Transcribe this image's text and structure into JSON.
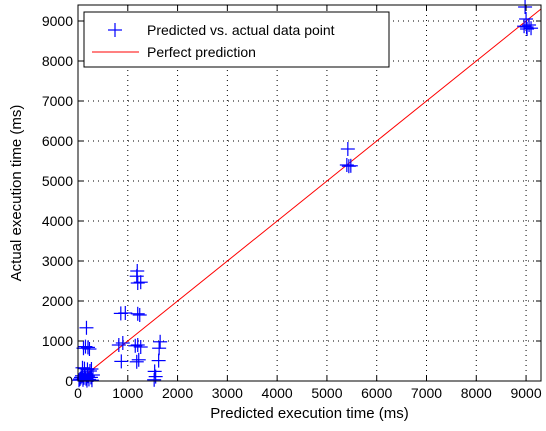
{
  "chart_data": {
    "type": "scatter",
    "title": "",
    "xlabel": "Predicted execution time (ms)",
    "ylabel": "Actual execution time (ms)",
    "xlim": [
      0,
      9300
    ],
    "ylim": [
      0,
      9400
    ],
    "xticks": [
      0,
      1000,
      2000,
      3000,
      4000,
      5000,
      6000,
      7000,
      8000,
      9000
    ],
    "yticks": [
      0,
      1000,
      2000,
      3000,
      4000,
      5000,
      6000,
      7000,
      8000,
      9000
    ],
    "grid": true,
    "legend_position": "top-left",
    "series": [
      {
        "name": "Predicted vs. actual data point",
        "marker": "+",
        "color": "#0000ff",
        "points": [
          [
            20,
            20
          ],
          [
            40,
            50
          ],
          [
            60,
            90
          ],
          [
            80,
            130
          ],
          [
            100,
            30
          ],
          [
            120,
            80
          ],
          [
            140,
            170
          ],
          [
            160,
            60
          ],
          [
            180,
            10
          ],
          [
            200,
            120
          ],
          [
            220,
            40
          ],
          [
            240,
            250
          ],
          [
            260,
            90
          ],
          [
            280,
            20
          ],
          [
            300,
            150
          ],
          [
            90,
            330
          ],
          [
            130,
            310
          ],
          [
            190,
            290
          ],
          [
            270,
            300
          ],
          [
            110,
            820
          ],
          [
            150,
            860
          ],
          [
            200,
            840
          ],
          [
            230,
            800
          ],
          [
            170,
            1330
          ],
          [
            820,
            900
          ],
          [
            870,
            490
          ],
          [
            900,
            950
          ],
          [
            860,
            1690
          ],
          [
            950,
            1700
          ],
          [
            1180,
            2620
          ],
          [
            1190,
            2750
          ],
          [
            1200,
            2450
          ],
          [
            1260,
            2470
          ],
          [
            1200,
            1680
          ],
          [
            1240,
            1650
          ],
          [
            1150,
            880
          ],
          [
            1200,
            900
          ],
          [
            1260,
            850
          ],
          [
            1180,
            480
          ],
          [
            1220,
            530
          ],
          [
            1530,
            30
          ],
          [
            1560,
            110
          ],
          [
            1540,
            240
          ],
          [
            1620,
            510
          ],
          [
            1650,
            980
          ],
          [
            1630,
            820
          ],
          [
            5420,
            5800
          ],
          [
            5400,
            5400
          ],
          [
            5440,
            5370
          ],
          [
            5480,
            5380
          ],
          [
            8980,
            9350
          ],
          [
            9000,
            9050
          ],
          [
            9010,
            8850
          ],
          [
            9060,
            8900
          ],
          [
            9100,
            8820
          ],
          [
            9020,
            8800
          ],
          [
            8960,
            8870
          ]
        ]
      },
      {
        "name": "Perfect prediction",
        "style": "line",
        "color": "#ff0000",
        "x": [
          0,
          9300
        ],
        "y": [
          0,
          9300
        ]
      }
    ]
  }
}
